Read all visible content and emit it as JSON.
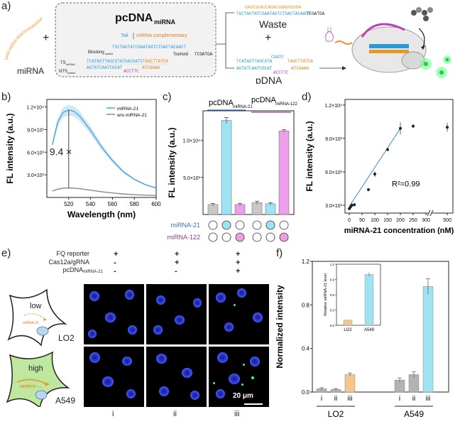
{
  "panel_labels": {
    "a": "a)",
    "b": "b)",
    "c": "c)",
    "d": "d)",
    "e": "e)",
    "f": "f)"
  },
  "panel_a": {
    "mirna_seq": "UAGCUUAUCAGACUGAUGUUGA",
    "mirna_label": "miRNA",
    "plus": "+",
    "box_title": "pcDNA",
    "box_title_sub": "miRNA",
    "tail": "Tail",
    "mirna_complementary": "miRNA complementary",
    "blocking": "Blocking",
    "blocking_sub": "switch",
    "toehold": "Toehold",
    "ts_label": "TS",
    "ts_sub": "miRNA",
    "nts_label": "NTS",
    "nts_sub": "switch",
    "seq_top": "TGCTAGTATCGAATAGTCTGACTACAACT",
    "seq_ts": "TCATAGTTAGCGTATGACGATC",
    "seq_ts_tail": "TAGCTTATCA",
    "seq_nts": "AGTATCAATCGCAT",
    "seq_nts_loop": "ACCTTC",
    "seq_nts_end": "ATCGAAG",
    "seq_tcgatga": "TCGATGA",
    "waste_top": "UAGCUUAUCAGACUGAUGUUGA",
    "waste_bottom": "TGCTAGTATCGAATAGTCTGACTACAACT",
    "waste_end": "TCGATGA",
    "waste_label": "Waste",
    "pdna_label": "pDNA",
    "pdna_ts": "TCATAGTTAGCGTA",
    "pdna_ts_loop": "CGATC",
    "pdna_ts_end": "TAGCTTATCA",
    "pdna_nts": "AGTATCAATCGCAT",
    "pdna_nts_loop": "ACCTTC",
    "pdna_nts_end": "ATCGAAG"
  },
  "panel_b": {
    "ylabel": "FL intensity (a.u.)",
    "xlabel": "Wavelength (nm)",
    "annotation": "9.4 ×",
    "legend": [
      "miRNA-21",
      "w/o miRNA-21"
    ],
    "colors": {
      "mirna21": "#4aa6d8",
      "without": "#8a8a8a"
    }
  },
  "panel_c": {
    "ylabel": "FL intensity (a.u.)",
    "group1": "pcDNA",
    "group1_sub": "miRNA-21",
    "group2": "pcDNA",
    "group2_sub": "miRNA-122",
    "row1": "miRNA-21",
    "row2": "miRNA-122",
    "colors": {
      "grey": "#c8c8c8",
      "cyan": "#9fe2f2",
      "pink": "#ec9ee9",
      "line1": "#3c6fb0",
      "line2": "#8a3b8a"
    }
  },
  "panel_d": {
    "ylabel": "FL intensity (a.u.)",
    "xlabel": "miRNA-21 concentration (nM)",
    "r2": "R²=0.99"
  },
  "panel_e": {
    "row_fq": "FQ reporter",
    "row_cas": "Cas12a/gRNA",
    "row_pc": "pcDNA",
    "row_pc_sub": "miRNA-21",
    "cols": [
      {
        "fq": "+",
        "cas": "-",
        "pc": "-"
      },
      {
        "fq": "+",
        "cas": "+",
        "pc": "-"
      },
      {
        "fq": "+",
        "cas": "+",
        "pc": "+"
      }
    ],
    "col_labels": [
      "i",
      "ii",
      "iii"
    ],
    "cell1_level": "low",
    "cell1_mirna": "miRNA-21",
    "cell1_name": "LO2",
    "cell2_level": "high",
    "cell2_mirna": "miRNA-21",
    "cell2_name": "A549",
    "scalebar": "20 μm"
  },
  "panel_f": {
    "ylabel": "Normalized intensity",
    "inset_ylabel": "Relative miRNA-21 level",
    "inset_x": [
      "LO2",
      "A549"
    ],
    "tick_labels": [
      "i",
      "ii",
      "iii",
      "i",
      "ii",
      "iii"
    ],
    "groups": [
      "LO2",
      "A549"
    ]
  },
  "chart_data": [
    {
      "type": "line",
      "panel": "b",
      "xlabel": "Wavelength (nm)",
      "ylabel": "FL intensity (a.u.)",
      "xlim": [
        500,
        600
      ],
      "ylim": [
        0,
        13000
      ],
      "x_ticks": [
        520,
        540,
        560,
        580,
        600
      ],
      "y_ticks": [
        "3.0×10³",
        "6.0×10³",
        "9.0×10³",
        "1.2×10⁴"
      ],
      "y_tick_values": [
        3000,
        6000,
        9000,
        12000
      ],
      "x": [
        505,
        510,
        515,
        520,
        525,
        530,
        540,
        550,
        560,
        570,
        580,
        590,
        600
      ],
      "series": [
        {
          "name": "miRNA-21",
          "values": [
            7000,
            10000,
            11300,
            11600,
            11400,
            10800,
            8900,
            6700,
            4900,
            3400,
            2400,
            1700,
            1250
          ]
        },
        {
          "name": "w/o miRNA-21",
          "values": [
            850,
            1100,
            1230,
            1250,
            1230,
            1160,
            960,
            760,
            590,
            460,
            370,
            300,
            250
          ]
        }
      ],
      "annotation": "9.4 ×"
    },
    {
      "type": "bar",
      "panel": "c",
      "ylabel": "FL intensity (a.u.)",
      "ylim": [
        0,
        14000
      ],
      "y_ticks": [
        "5.0×10³",
        "1.0×10⁴"
      ],
      "y_tick_values": [
        5000,
        10000
      ],
      "values": [
        1350,
        12700,
        1350,
        1600,
        1450,
        11300
      ],
      "errors": [
        150,
        400,
        150,
        200,
        150,
        150
      ],
      "bar_colors": [
        "grey",
        "cyan",
        "pink",
        "grey",
        "cyan",
        "pink"
      ],
      "mirna21": [
        false,
        true,
        false,
        false,
        true,
        false
      ],
      "mirna122": [
        false,
        false,
        true,
        false,
        false,
        true
      ]
    },
    {
      "type": "scatter",
      "panel": "d",
      "xlabel": "miRNA-21 concentration (nM)",
      "ylabel": "FL intensity (a.u.)",
      "x_ticks": [
        0,
        50,
        100,
        150,
        200,
        250,
        300,
        500
      ],
      "y_ticks": [
        "3.0×10³",
        "6.0×10³",
        "9.0×10³",
        "1.2×10⁴"
      ],
      "y_tick_values": [
        3000,
        6000,
        9000,
        12000
      ],
      "ylim": [
        2300,
        12500
      ],
      "x": [
        0,
        5,
        10,
        20,
        75,
        100,
        150,
        200,
        250,
        500
      ],
      "y": [
        2700,
        2850,
        3000,
        3050,
        4400,
        5800,
        8000,
        9900,
        10100,
        10000
      ],
      "errors": [
        150,
        150,
        150,
        150,
        150,
        250,
        150,
        550,
        150,
        400
      ],
      "fit": {
        "x": [
          0,
          200
        ],
        "y": [
          2900,
          9900
        ]
      },
      "r2": "R²=0.99"
    },
    {
      "type": "bar",
      "panel": "f",
      "ylabel": "Normalized intensity",
      "ylim": [
        0,
        1.2
      ],
      "y_ticks": [
        "0.0",
        "0.4",
        "0.8",
        "1.2"
      ],
      "y_tick_values": [
        0,
        0.4,
        0.8,
        1.2
      ],
      "categories": [
        "i",
        "ii",
        "iii",
        "i",
        "ii",
        "iii"
      ],
      "groups": [
        "LO2",
        "A549"
      ],
      "values": [
        0.03,
        0.025,
        0.16,
        0.11,
        0.16,
        0.97
      ],
      "errors": [
        0.01,
        0.008,
        0.015,
        0.02,
        0.025,
        0.07
      ],
      "bar_colors": [
        "#b3b3b3",
        "#b3b3b3",
        "#f6c48c",
        "#b3b3b3",
        "#b3b3b3",
        "#9fe2f2"
      ],
      "inset": {
        "ylabel": "Relative miRNA-21 level",
        "categories": [
          "LO2",
          "A549"
        ],
        "values": [
          0.1,
          1.0
        ],
        "errors": [
          0.01,
          0.04
        ],
        "ylim": [
          0,
          1.2
        ],
        "y_ticks": [
          "0.0",
          "0.3",
          "0.6",
          "0.9",
          "1.2"
        ],
        "y_tick_values": [
          0,
          0.3,
          0.6,
          0.9,
          1.2
        ],
        "bar_colors": [
          "#f6c48c",
          "#9fe2f2"
        ]
      }
    }
  ]
}
